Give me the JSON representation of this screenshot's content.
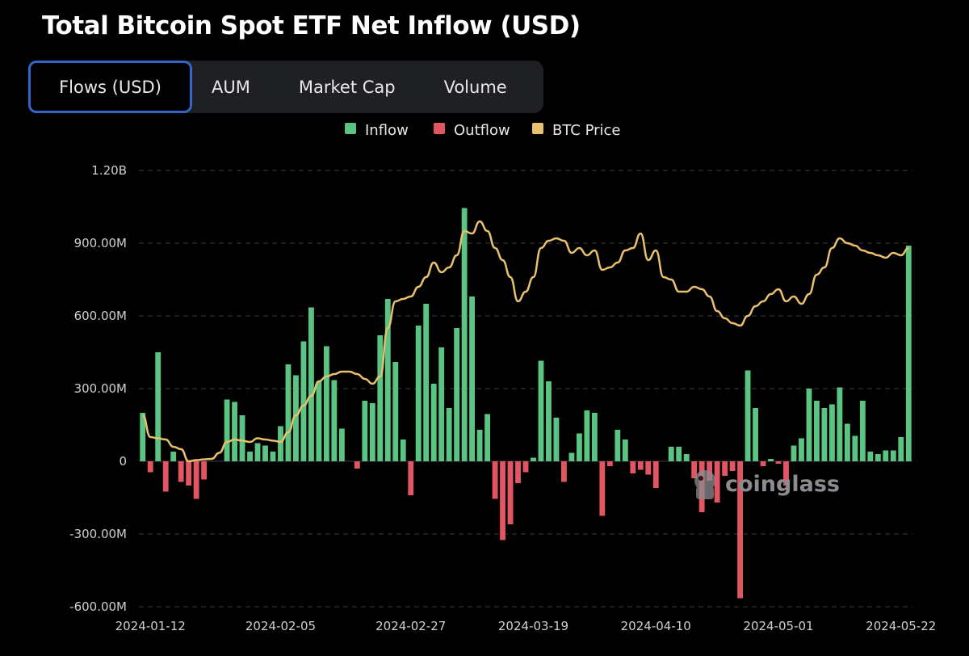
{
  "title": "Total Bitcoin Spot ETF Net Inflow (USD)",
  "tabs": [
    {
      "label": "Flows (USD)",
      "active": true
    },
    {
      "label": "AUM",
      "active": false
    },
    {
      "label": "Market Cap",
      "active": false
    },
    {
      "label": "Volume",
      "active": false
    }
  ],
  "watermark": "coinglass",
  "chart_data": {
    "type": "bar",
    "title": "Total Bitcoin Spot ETF Net Inflow (USD)",
    "legend": [
      {
        "name": "Inflow",
        "color": "#5cc482"
      },
      {
        "name": "Outflow",
        "color": "#e25563"
      },
      {
        "name": "BTC Price",
        "color": "#e8c06e"
      }
    ],
    "legend_position": "top",
    "y_ticks": [
      "1.20B",
      "900.00M",
      "600.00M",
      "300.00M",
      "0",
      "-300.00M",
      "-600.00M"
    ],
    "y_tick_values": [
      1200,
      900,
      600,
      300,
      0,
      -300,
      -600
    ],
    "ylim": [
      -600,
      1200
    ],
    "y_unit": "M USD",
    "grid": true,
    "x_ticks": [
      "2024-01-12",
      "2024-02-05",
      "2024-02-27",
      "2024-03-19",
      "2024-04-10",
      "2024-05-01",
      "2024-05-22"
    ],
    "x_tick_indices": [
      1,
      18,
      35,
      51,
      67,
      83,
      99
    ],
    "series": [
      {
        "name": "Net Flow",
        "values": [
          200,
          -45,
          450,
          -125,
          40,
          -85,
          -100,
          -155,
          -75,
          0,
          0,
          255,
          245,
          190,
          40,
          75,
          65,
          40,
          145,
          400,
          355,
          495,
          635,
          330,
          475,
          335,
          135,
          0,
          -30,
          250,
          240,
          520,
          670,
          410,
          90,
          -140,
          560,
          650,
          320,
          470,
          220,
          550,
          1045,
          680,
          130,
          195,
          -155,
          -325,
          -260,
          -90,
          -45,
          15,
          415,
          330,
          180,
          -85,
          35,
          115,
          210,
          200,
          -225,
          -20,
          130,
          90,
          -50,
          -35,
          -55,
          -110,
          0,
          60,
          60,
          30,
          -70,
          -210,
          -80,
          -170,
          -60,
          -40,
          -565,
          375,
          220,
          -20,
          10,
          -10,
          -100,
          65,
          95,
          300,
          250,
          220,
          235,
          305,
          155,
          105,
          250,
          40,
          30,
          45,
          45,
          100,
          890
        ]
      },
      {
        "name": "BTC Price",
        "values": [
          190,
          100,
          95,
          90,
          60,
          50,
          0,
          5,
          8,
          10,
          35,
          80,
          90,
          85,
          80,
          95,
          90,
          85,
          80,
          120,
          190,
          230,
          270,
          330,
          350,
          360,
          370,
          370,
          360,
          340,
          320,
          350,
          550,
          660,
          670,
          680,
          720,
          760,
          820,
          780,
          800,
          850,
          950,
          940,
          990,
          950,
          880,
          830,
          760,
          660,
          700,
          760,
          880,
          910,
          920,
          910,
          860,
          880,
          850,
          870,
          790,
          800,
          820,
          870,
          880,
          940,
          830,
          870,
          760,
          750,
          700,
          700,
          720,
          710,
          680,
          620,
          590,
          570,
          560,
          600,
          640,
          660,
          690,
          710,
          660,
          680,
          650,
          690,
          770,
          800,
          880,
          920,
          900,
          890,
          870,
          860,
          850,
          840,
          860,
          850,
          880
        ]
      }
    ]
  }
}
